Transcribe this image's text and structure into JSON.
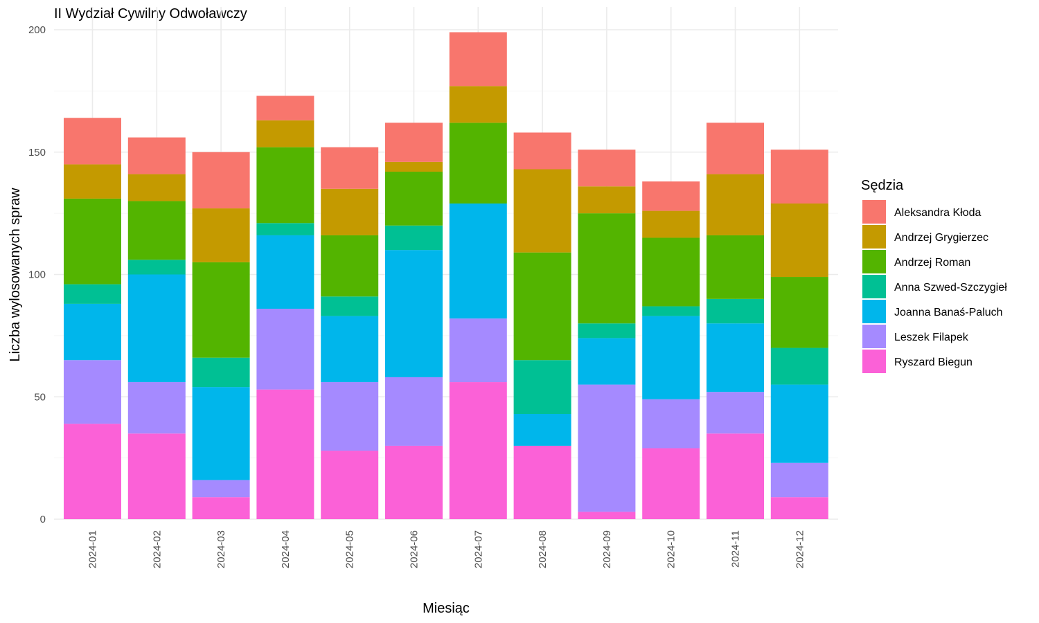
{
  "chart_data": {
    "type": "bar",
    "stacked": true,
    "title": "II Wydział Cywilny Odwoławczy",
    "xlabel": "Miesiąc",
    "ylabel": "Liczba wylosowanych spraw",
    "ylim": [
      0,
      200
    ],
    "yticks": [
      0,
      50,
      100,
      150,
      200
    ],
    "grid": true,
    "legend_title": "Sędzia",
    "legend_position": "right",
    "categories": [
      "2024-01",
      "2024-02",
      "2024-03",
      "2024-04",
      "2024-05",
      "2024-06",
      "2024-07",
      "2024-08",
      "2024-09",
      "2024-10",
      "2024-11",
      "2024-12"
    ],
    "series": [
      {
        "name": "Ryszard Biegun",
        "color": "#FB61D7",
        "values": [
          39,
          35,
          9,
          53,
          28,
          30,
          56,
          30,
          3,
          29,
          35,
          9
        ]
      },
      {
        "name": "Leszek Filapek",
        "color": "#A58AFF",
        "values": [
          26,
          21,
          7,
          33,
          28,
          28,
          26,
          0,
          52,
          20,
          17,
          14
        ]
      },
      {
        "name": "Joanna Banaś-Paluch",
        "color": "#00B6EB",
        "values": [
          23,
          44,
          38,
          30,
          27,
          52,
          47,
          13,
          19,
          34,
          28,
          32
        ]
      },
      {
        "name": "Anna Szwed-Szczygieł",
        "color": "#00C094",
        "values": [
          8,
          6,
          12,
          5,
          8,
          10,
          0,
          22,
          6,
          4,
          10,
          15
        ]
      },
      {
        "name": "Andrzej Roman",
        "color": "#53B400",
        "values": [
          35,
          24,
          39,
          31,
          25,
          22,
          33,
          44,
          45,
          28,
          26,
          29
        ]
      },
      {
        "name": "Andrzej Grygierzec",
        "color": "#C49A00",
        "values": [
          14,
          11,
          22,
          11,
          19,
          4,
          15,
          34,
          11,
          11,
          25,
          30
        ]
      },
      {
        "name": "Aleksandra Kłoda",
        "color": "#F8766D",
        "values": [
          19,
          15,
          23,
          10,
          17,
          16,
          22,
          15,
          15,
          12,
          21,
          22
        ]
      }
    ],
    "legend_order": [
      "Aleksandra Kłoda",
      "Andrzej Grygierzec",
      "Andrzej Roman",
      "Anna Szwed-Szczygieł",
      "Joanna Banaś-Paluch",
      "Leszek Filapek",
      "Ryszard Biegun"
    ]
  }
}
